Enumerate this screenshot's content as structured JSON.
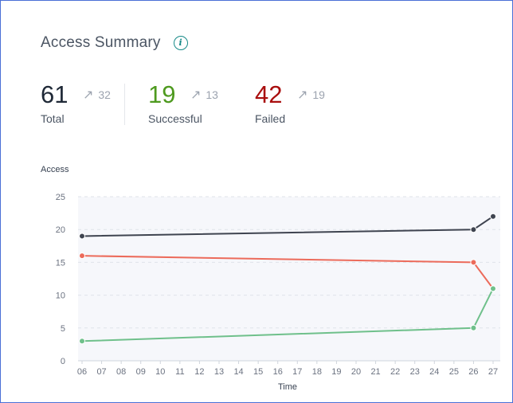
{
  "card": {
    "title": "Access Summary",
    "info_icon": "info-icon"
  },
  "stats": {
    "total": {
      "value": "61",
      "delta": "32",
      "label": "Total"
    },
    "successful": {
      "value": "19",
      "delta": "13",
      "label": "Successful"
    },
    "failed": {
      "value": "42",
      "delta": "19",
      "label": "Failed"
    },
    "delta_icon": "arrow-up-right-icon"
  },
  "colors": {
    "total": "#3f4450",
    "successful": "#6fc08b",
    "failed": "#ec6b5b"
  },
  "chart_data": {
    "type": "line",
    "title": "",
    "xlabel": "Time",
    "ylabel": "Access",
    "ylim": [
      0,
      25
    ],
    "yticks": [
      0,
      5,
      10,
      15,
      20,
      25
    ],
    "x": [
      "06",
      "07",
      "08",
      "09",
      "10",
      "11",
      "12",
      "13",
      "14",
      "15",
      "16",
      "17",
      "18",
      "19",
      "20",
      "21",
      "22",
      "23",
      "24",
      "25",
      "26",
      "27"
    ],
    "grid": true,
    "series": [
      {
        "key": "total",
        "points": [
          {
            "x": "06",
            "y": 19
          },
          {
            "x": "26",
            "y": 20
          },
          {
            "x": "27",
            "y": 22
          }
        ]
      },
      {
        "key": "failed",
        "points": [
          {
            "x": "06",
            "y": 16
          },
          {
            "x": "26",
            "y": 15
          },
          {
            "x": "27",
            "y": 11
          }
        ]
      },
      {
        "key": "successful",
        "points": [
          {
            "x": "06",
            "y": 3
          },
          {
            "x": "26",
            "y": 5
          },
          {
            "x": "27",
            "y": 11
          }
        ]
      }
    ]
  }
}
